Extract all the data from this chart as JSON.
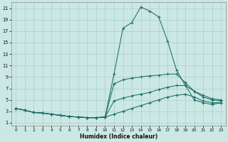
{
  "xlabel": "Humidex (Indice chaleur)",
  "bg_color": "#cce8e4",
  "grid_color": "#aacfcb",
  "line_color": "#1a6e64",
  "xlim": [
    -0.5,
    23.5
  ],
  "ylim": [
    0.5,
    22
  ],
  "yticks": [
    1,
    3,
    5,
    7,
    9,
    11,
    13,
    15,
    17,
    19,
    21
  ],
  "xticks": [
    0,
    1,
    2,
    3,
    4,
    5,
    6,
    7,
    8,
    9,
    10,
    11,
    12,
    13,
    14,
    15,
    16,
    17,
    18,
    19,
    20,
    21,
    22,
    23
  ],
  "series": [
    {
      "x": [
        0,
        1,
        2,
        3,
        4,
        5,
        6,
        7,
        8,
        9,
        10,
        11,
        12,
        13,
        14,
        15,
        16,
        17,
        18,
        19,
        20,
        21,
        22,
        23
      ],
      "y": [
        3.5,
        3.2,
        2.8,
        2.7,
        2.5,
        2.3,
        2.1,
        2.0,
        1.9,
        1.9,
        2.0,
        9.5,
        17.5,
        18.5,
        21.2,
        20.5,
        19.5,
        15.3,
        10.2,
        7.5,
        5.0,
        4.5,
        4.2,
        4.5
      ]
    },
    {
      "x": [
        0,
        1,
        2,
        3,
        4,
        5,
        6,
        7,
        8,
        9,
        10,
        11,
        12,
        13,
        14,
        15,
        16,
        17,
        18,
        19,
        20,
        21,
        22,
        23
      ],
      "y": [
        3.5,
        3.2,
        2.8,
        2.7,
        2.5,
        2.3,
        2.1,
        2.0,
        1.9,
        1.9,
        2.0,
        7.8,
        8.5,
        8.8,
        9.0,
        9.2,
        9.3,
        9.5,
        9.5,
        8.0,
        6.5,
        5.5,
        5.0,
        4.8
      ]
    },
    {
      "x": [
        0,
        1,
        2,
        3,
        4,
        5,
        6,
        7,
        8,
        9,
        10,
        11,
        12,
        13,
        14,
        15,
        16,
        17,
        18,
        19,
        20,
        21,
        22,
        23
      ],
      "y": [
        3.5,
        3.2,
        2.8,
        2.7,
        2.5,
        2.3,
        2.1,
        2.0,
        1.9,
        1.9,
        2.0,
        4.8,
        5.3,
        5.7,
        6.0,
        6.3,
        6.8,
        7.2,
        7.5,
        7.5,
        6.5,
        5.8,
        5.2,
        5.0
      ]
    },
    {
      "x": [
        0,
        1,
        2,
        3,
        4,
        5,
        6,
        7,
        8,
        9,
        10,
        11,
        12,
        13,
        14,
        15,
        16,
        17,
        18,
        19,
        20,
        21,
        22,
        23
      ],
      "y": [
        3.5,
        3.2,
        2.8,
        2.7,
        2.5,
        2.3,
        2.1,
        2.0,
        1.9,
        1.9,
        2.0,
        2.5,
        3.0,
        3.5,
        4.0,
        4.5,
        5.0,
        5.5,
        5.8,
        6.0,
        5.5,
        4.8,
        4.5,
        4.5
      ]
    }
  ]
}
